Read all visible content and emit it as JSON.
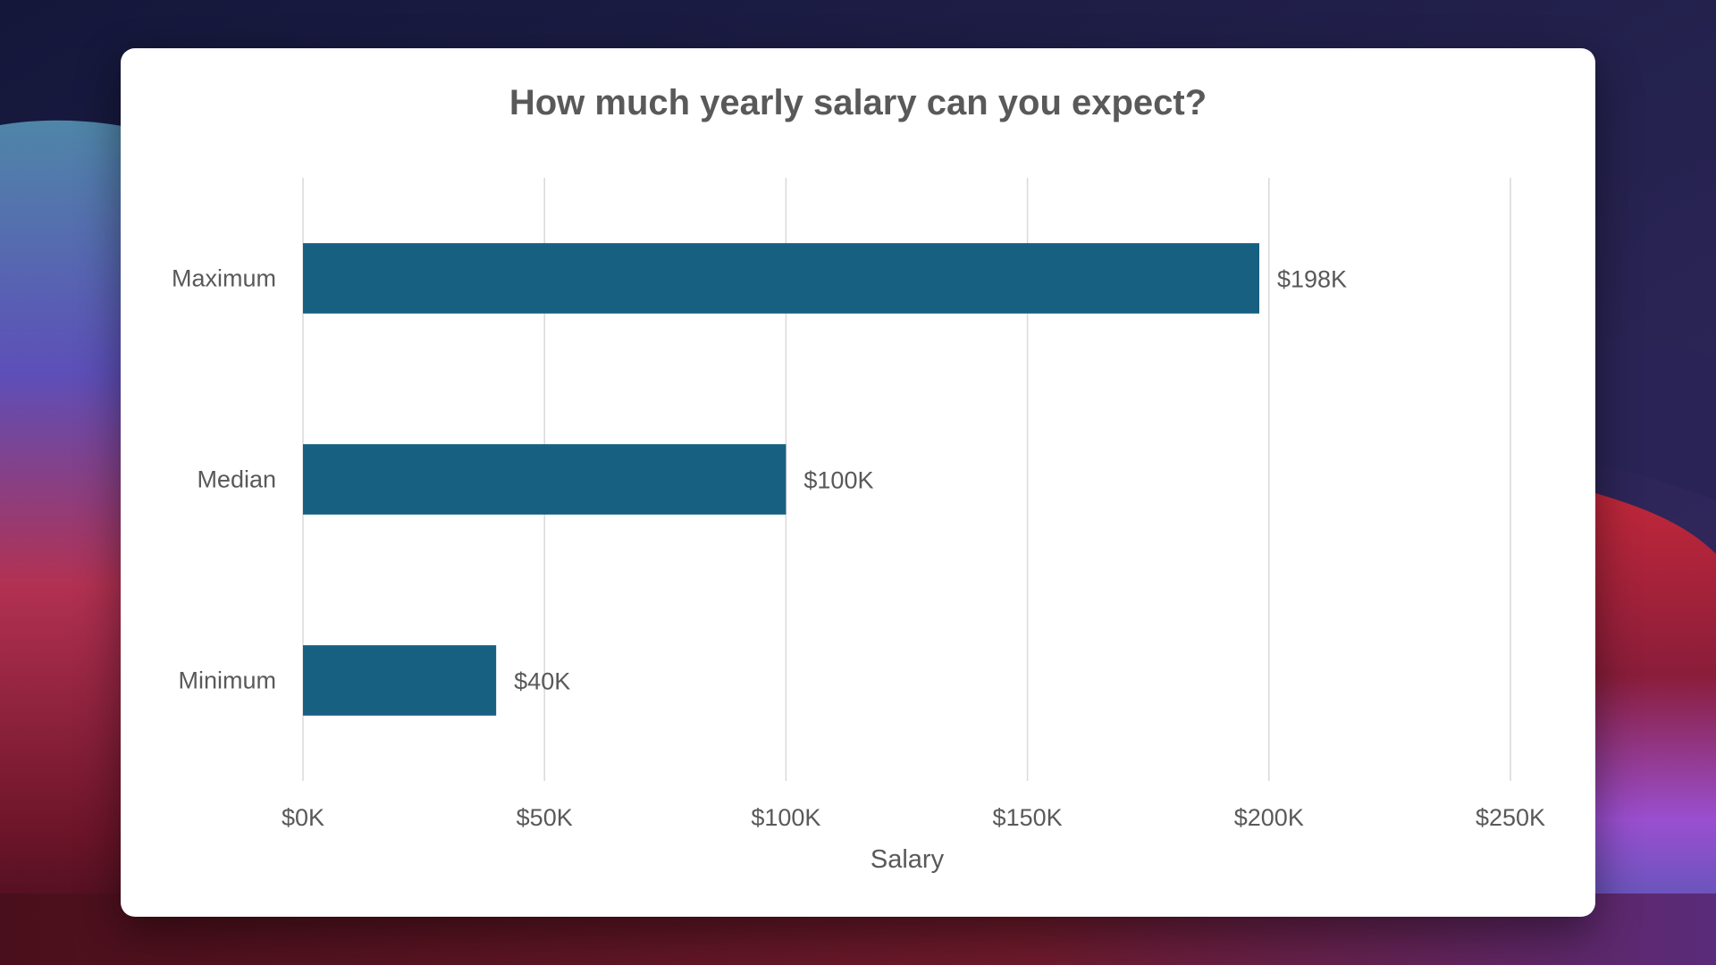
{
  "colors": {
    "bar": "#176082",
    "gridline": "#d9d9d9",
    "text": "#595959",
    "card_background": "#ffffff"
  },
  "chart_data": {
    "type": "bar",
    "orientation": "horizontal",
    "title": "How much yearly salary can you expect?",
    "xlabel": "Salary",
    "ylabel": "",
    "categories": [
      "Maximum",
      "Median",
      "Minimum"
    ],
    "values": [
      198,
      100,
      40
    ],
    "data_labels": [
      "$198K",
      "$100K",
      "$40K"
    ],
    "value_unit": "thousand USD",
    "xlim": [
      0,
      250
    ],
    "x_ticks": [
      0,
      50,
      100,
      150,
      200,
      250
    ],
    "x_tick_labels": [
      "$0K",
      "$50K",
      "$100K",
      "$150K",
      "$200K",
      "$250K"
    ],
    "grid": true,
    "legend": "none"
  }
}
